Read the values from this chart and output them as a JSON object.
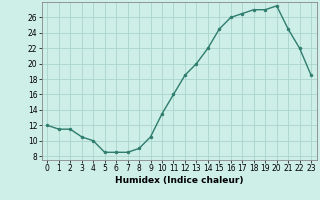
{
  "x": [
    0,
    1,
    2,
    3,
    4,
    5,
    6,
    7,
    8,
    9,
    10,
    11,
    12,
    13,
    14,
    15,
    16,
    17,
    18,
    19,
    20,
    21,
    22,
    23
  ],
  "y": [
    12,
    11.5,
    11.5,
    10.5,
    10,
    8.5,
    8.5,
    8.5,
    9,
    10.5,
    13.5,
    16,
    18.5,
    20,
    22,
    24.5,
    26,
    26.5,
    27,
    27,
    27.5,
    24.5,
    22,
    18.5
  ],
  "line_color": "#2e7d6e",
  "marker": "o",
  "marker_size": 2,
  "bg_color": "#ceeee8",
  "grid_color": "#aad4cc",
  "xlabel": "Humidex (Indice chaleur)",
  "ylabel": "",
  "xlim": [
    -0.5,
    23.5
  ],
  "ylim": [
    7.5,
    28
  ],
  "yticks": [
    8,
    10,
    12,
    14,
    16,
    18,
    20,
    22,
    24,
    26
  ],
  "xticks": [
    0,
    1,
    2,
    3,
    4,
    5,
    6,
    7,
    8,
    9,
    10,
    11,
    12,
    13,
    14,
    15,
    16,
    17,
    18,
    19,
    20,
    21,
    22,
    23
  ],
  "label_fontsize": 6.5,
  "tick_fontsize": 5.5
}
